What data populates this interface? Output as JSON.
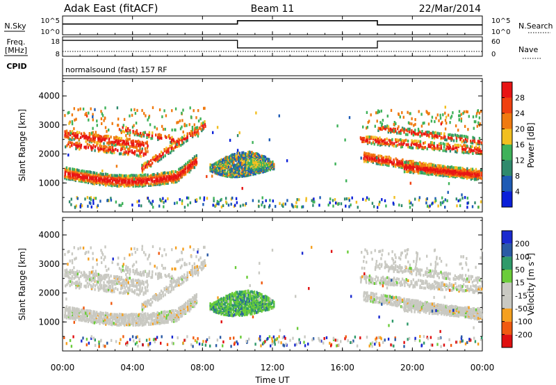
{
  "header": {
    "station": "Adak East (fitACF)",
    "beam": "Beam 11",
    "date": "22/Mar/2014"
  },
  "labels": {
    "nsky": "N.Sky",
    "nsearch": "N.Search",
    "freq": "Freq.",
    "mhz": "[MHz]",
    "nave": "Nave",
    "cpid": "CPID",
    "cpid_value": "normalsound (fast) 157 RF",
    "power_bar": "Power [dB]",
    "velocity_bar": "Velocity [m s-1]",
    "xlabel": "Time UT"
  },
  "colors": {
    "power_scale": [
      "#0a1fd9",
      "#1e5bb5",
      "#2f8a6d",
      "#3fb25a",
      "#f2bf20",
      "#f07a10",
      "#f04010",
      "#e81414"
    ],
    "velocity_scale": [
      "#e01010",
      "#f05a10",
      "#f5a020",
      "#c9c9c2",
      "#c9c9c2",
      "#6bcc3a",
      "#2f9a6a",
      "#2a5aa5",
      "#1a2ad0"
    ]
  },
  "chart_data": [
    {
      "type": "line",
      "name": "noise",
      "ylabel_left": "N.Sky",
      "ylabel_right": "N.Search",
      "yticks_left": [
        "10^5",
        "10^0"
      ],
      "yticks_right": [
        "10^5",
        "10^0"
      ],
      "series": [
        {
          "x": [
            0,
            10,
            10,
            18,
            18,
            24
          ],
          "y": [
            0.6,
            0.6,
            0.8,
            0.8,
            0.55,
            0.55
          ]
        }
      ]
    },
    {
      "type": "line",
      "name": "frequency",
      "ylabel_left": "Freq. [MHz]",
      "ylabel_right": "Nave",
      "yticks_left": [
        "18",
        "8"
      ],
      "yticks_right": [
        "60",
        "0"
      ],
      "ylim_left": [
        8,
        18
      ],
      "ylim_right": [
        0,
        60
      ],
      "series": [
        {
          "name": "Freq.",
          "x": [
            0,
            10,
            10,
            18,
            18,
            24
          ],
          "y": [
            16.2,
            16.2,
            12.3,
            12.3,
            15.8,
            15.8
          ]
        },
        {
          "name": "Nave",
          "x": [
            0,
            24
          ],
          "y": [
            15,
            15
          ]
        }
      ]
    },
    {
      "type": "heatmap",
      "name": "power",
      "ylabel": "Slant Range [km]",
      "ylim": [
        0,
        4600
      ],
      "yticks": [
        1000,
        2000,
        3000,
        4000
      ],
      "colorbar_label": "Power [dB]",
      "colorbar_ticks": [
        "4",
        "8",
        "12",
        "16",
        "20",
        "24",
        "28"
      ],
      "colorbar_range": [
        0,
        32
      ]
    },
    {
      "type": "heatmap",
      "name": "velocity",
      "ylabel": "Slant Range [km]",
      "ylim": [
        0,
        4600
      ],
      "yticks": [
        1000,
        2000,
        3000,
        4000
      ],
      "colorbar_label": "Velocity [m s-1]",
      "colorbar_ticks": [
        "-200",
        "-100",
        "-50",
        "-15",
        "15",
        "50",
        "100",
        "200"
      ]
    }
  ],
  "xaxis": {
    "range": [
      0,
      24
    ],
    "ticks": [
      "00:00",
      "04:00",
      "08:00",
      "12:00",
      "16:00",
      "20:00",
      "00:00"
    ]
  }
}
